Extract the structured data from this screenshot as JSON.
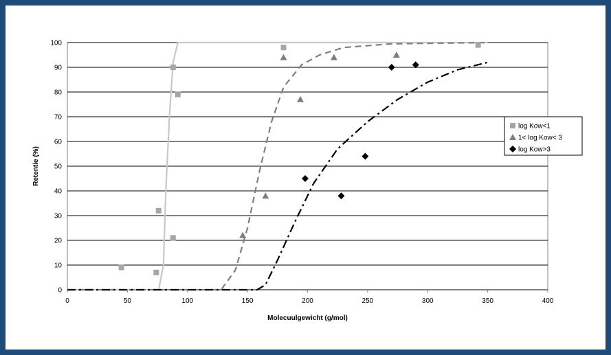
{
  "chart_data": {
    "type": "scatter",
    "xlabel": "Molecuulgewicht (g/mol)",
    "ylabel": "Retentie (%)",
    "xlim": [
      0,
      400
    ],
    "ylim": [
      0,
      100
    ],
    "xticks": [
      "0",
      "50",
      "100",
      "150",
      "200",
      "250",
      "300",
      "350",
      "400"
    ],
    "yticks": [
      "0",
      "10",
      "20",
      "30",
      "40",
      "50",
      "60",
      "70",
      "80",
      "90",
      "100"
    ],
    "grid": "horizontal",
    "legend_position": "right",
    "series": [
      {
        "name": "log Kow<1",
        "marker": "square",
        "color": "#a6a6a6",
        "points": [
          [
            45,
            9
          ],
          [
            74,
            7
          ],
          [
            76,
            32
          ],
          [
            88,
            21
          ],
          [
            88,
            90
          ],
          [
            92,
            79
          ],
          [
            180,
            98
          ],
          [
            342,
            99
          ]
        ]
      },
      {
        "name": "1< log Kow< 3",
        "marker": "triangle",
        "color": "#7f7f7f",
        "points": [
          [
            146,
            22
          ],
          [
            165,
            38
          ],
          [
            180,
            94
          ],
          [
            194,
            77
          ],
          [
            222,
            94
          ],
          [
            274,
            95
          ]
        ]
      },
      {
        "name": "log Kow>3",
        "marker": "diamond",
        "color": "#000000",
        "points": [
          [
            198,
            45
          ],
          [
            228,
            38
          ],
          [
            248,
            54
          ],
          [
            270,
            90
          ],
          [
            290,
            91
          ]
        ]
      }
    ],
    "fit_curves": [
      {
        "series": "log Kow<1",
        "style": "solid",
        "color": "#c8c8c8",
        "points": [
          [
            0,
            0
          ],
          [
            76,
            0
          ],
          [
            80,
            10
          ],
          [
            82,
            40
          ],
          [
            85,
            70
          ],
          [
            88,
            92
          ],
          [
            92,
            100
          ],
          [
            350,
            100
          ]
        ]
      },
      {
        "series": "1< log Kow< 3",
        "style": "dashed",
        "color": "#7f7f7f",
        "points": [
          [
            0,
            0
          ],
          [
            128,
            0
          ],
          [
            140,
            8
          ],
          [
            150,
            25
          ],
          [
            160,
            48
          ],
          [
            170,
            68
          ],
          [
            180,
            82
          ],
          [
            195,
            91
          ],
          [
            210,
            95
          ],
          [
            230,
            98
          ],
          [
            270,
            99.5
          ],
          [
            350,
            100
          ]
        ]
      },
      {
        "series": "log Kow>3",
        "style": "dashdot",
        "color": "#000000",
        "points": [
          [
            0,
            0
          ],
          [
            158,
            0
          ],
          [
            165,
            2
          ],
          [
            175,
            12
          ],
          [
            190,
            28
          ],
          [
            205,
            43
          ],
          [
            225,
            57
          ],
          [
            250,
            68
          ],
          [
            275,
            77
          ],
          [
            300,
            84
          ],
          [
            325,
            89
          ],
          [
            350,
            92
          ]
        ]
      }
    ]
  }
}
